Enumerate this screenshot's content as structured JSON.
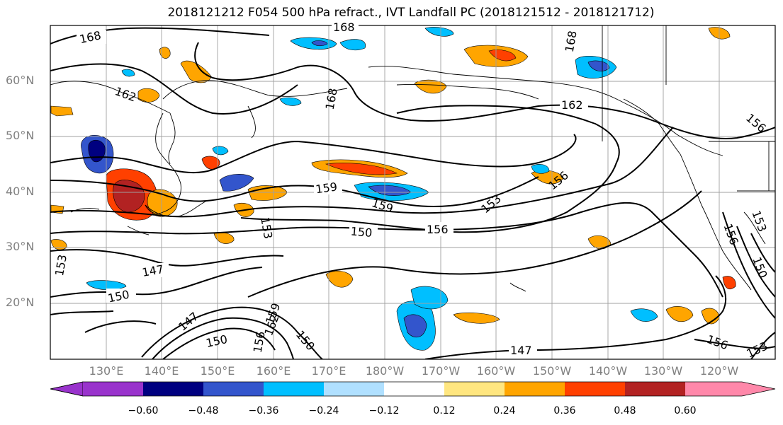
{
  "title": "2018121212 F054 500 hPa refract., IVT Landfall PC (2018121512 - 2018121712)",
  "lat_labels": [
    "60°N",
    "50°N",
    "40°N",
    "30°N",
    "20°N"
  ],
  "lon_labels": [
    "130°E",
    "140°E",
    "150°E",
    "160°E",
    "170°E",
    "180°W",
    "170°W",
    "160°W",
    "150°W",
    "140°W",
    "130°W",
    "120°W"
  ],
  "contour_labels": [
    "168",
    "168",
    "168",
    "168",
    "162",
    "156",
    "159",
    "159",
    "150",
    "156",
    "153",
    "156",
    "153",
    "156",
    "153",
    "150",
    "147",
    "150",
    "153",
    "147",
    "150",
    "156",
    "162",
    "150",
    "147",
    "156",
    "153",
    "162",
    "159"
  ],
  "colorbar": {
    "ticks": [
      "−0.60",
      "−0.48",
      "−0.36",
      "−0.24",
      "−0.12",
      "0.12",
      "0.24",
      "0.36",
      "0.48",
      "0.60"
    ],
    "colors": [
      "#9933cc",
      "#000080",
      "#3355cc",
      "#00bfff",
      "#b0e0ff",
      "#ffffff",
      "#ffe680",
      "#ffa500",
      "#ff4000",
      "#b22222",
      "#ff88aa"
    ]
  }
}
